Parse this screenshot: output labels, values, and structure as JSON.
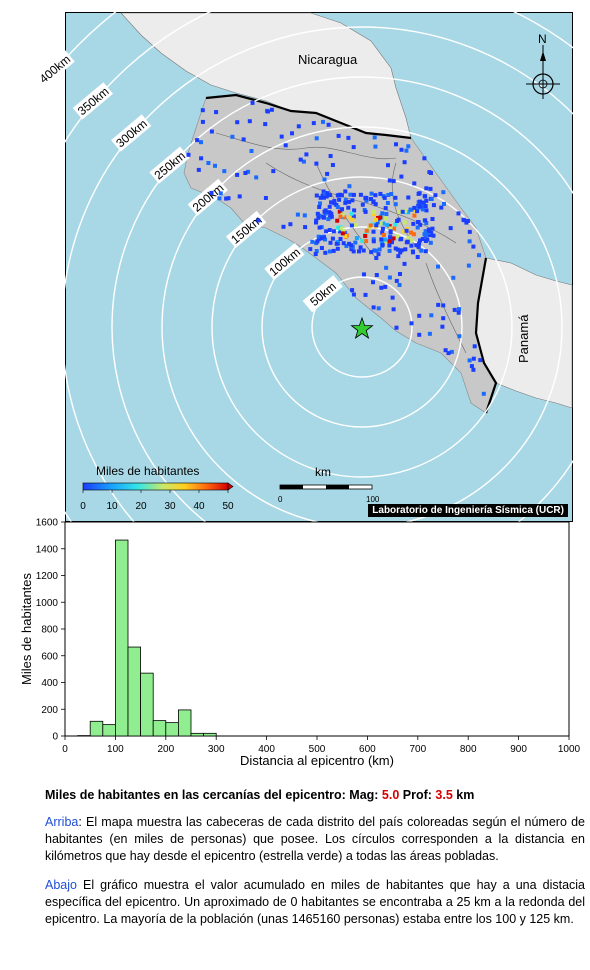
{
  "map": {
    "country_labels": [
      "Nicaragua",
      "Panamá"
    ],
    "north_label": "N",
    "ring_labels": [
      "50km",
      "100km",
      "150km",
      "200km",
      "250km",
      "300km",
      "350km",
      "400km"
    ],
    "colorbar_title": "Miles de habitantes",
    "colorbar_ticks": [
      "0",
      "10",
      "20",
      "30",
      "40",
      "50"
    ],
    "scalebar_title": "km",
    "scalebar_ticks": [
      "0",
      "100"
    ],
    "credit": "Laboratorio de Ingeniería Sísmica (UCR)",
    "colors": {
      "ocean": "#a8d8e6",
      "land": "#c8c8c8",
      "foreign_land": "#ececec",
      "epicenter": "#33cc33",
      "rings": "#ffffff"
    }
  },
  "chart_data": {
    "type": "bar",
    "xlabel": "Distancia al epicentro (km)",
    "ylabel": "Miles de habitantes",
    "xlim": [
      0,
      1000
    ],
    "ylim": [
      0,
      1600
    ],
    "xticks": [
      0,
      100,
      200,
      300,
      400,
      500,
      600,
      700,
      800,
      900,
      1000
    ],
    "yticks": [
      0,
      200,
      400,
      600,
      800,
      1000,
      1200,
      1400,
      1600
    ],
    "bin_width": 25,
    "bins": [
      {
        "x0": 25,
        "value": 3
      },
      {
        "x0": 50,
        "value": 110
      },
      {
        "x0": 75,
        "value": 85
      },
      {
        "x0": 100,
        "value": 1465
      },
      {
        "x0": 125,
        "value": 665
      },
      {
        "x0": 150,
        "value": 470
      },
      {
        "x0": 175,
        "value": 115
      },
      {
        "x0": 200,
        "value": 100
      },
      {
        "x0": 225,
        "value": 195
      },
      {
        "x0": 250,
        "value": 20
      },
      {
        "x0": 275,
        "value": 20
      }
    ],
    "bar_color": "#90ee90",
    "grid": false
  },
  "caption": {
    "title_prefix": "Miles de habitantes en las cercanías del epicentro: Mag: ",
    "mag": "5.0",
    "prof_prefix": " Prof: ",
    "prof": "3.5",
    "prof_unit": " km",
    "p1_tag": "Arriba",
    "p1_text": ": El mapa muestra las cabeceras de cada distrito del país coloreadas según el número de habitantes (en miles de personas) que posee.  Los círculos corresponden a la distancia en kilómetros que hay desde el epicentro (estrella verde) a todas las áreas pobladas.",
    "p2_tag": "Abajo",
    "p2_text": " El gráfico muestra el valor acumulado en miles de habitantes que hay a una distacia específica del epicentro.  Un aproximado de 0 habitantes se encontraba a 25 km a la redonda del epicentro.  La mayoría de la población (unas 1465160 personas) estaba entre los 100 y 125 km."
  }
}
